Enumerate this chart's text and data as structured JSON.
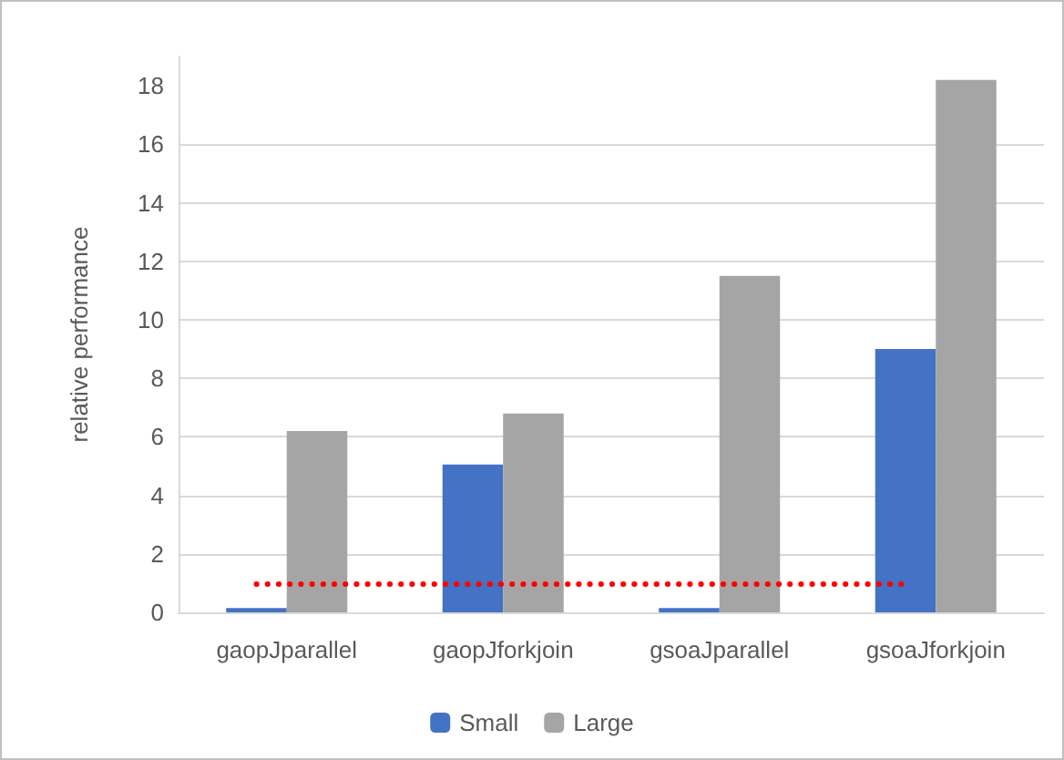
{
  "chart_data": {
    "type": "bar",
    "ylabel": "relative performance",
    "categories": [
      "gaopJparallel",
      "gaopJforkjoin",
      "gsoaJparallel",
      "gsoaJforkjoin"
    ],
    "series": [
      {
        "name": "Small",
        "color": "#4472c4",
        "values": [
          0.15,
          5.05,
          0.15,
          9.0
        ]
      },
      {
        "name": "Large",
        "color": "#a5a5a5",
        "values": [
          6.2,
          6.8,
          11.5,
          18.2
        ]
      }
    ],
    "ylim": [
      0,
      19
    ],
    "yticks": [
      0,
      2,
      4,
      6,
      8,
      10,
      12,
      14,
      16,
      18
    ],
    "grid": "y",
    "legend": "bottom",
    "ref_lines": [
      {
        "axis": "y",
        "value": 1,
        "color": "#ff0000",
        "line_style": "dotted"
      }
    ]
  }
}
